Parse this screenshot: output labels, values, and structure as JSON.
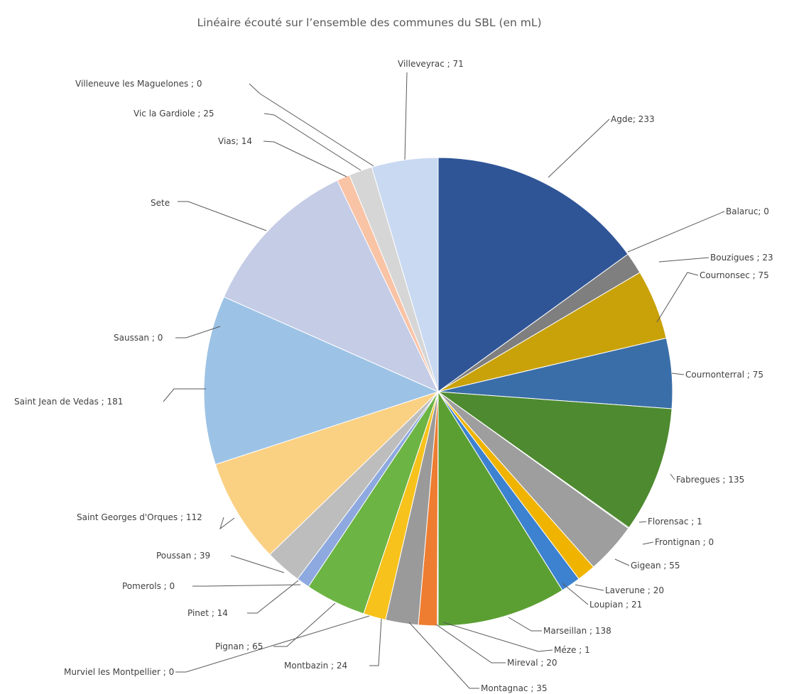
{
  "chart_data": {
    "type": "pie",
    "title": "Linéaire écouté sur l’ensemble des communes du SBL (en mL)",
    "start": "12-o'clock",
    "direction": "clockwise",
    "slices": [
      {
        "label": "Agde; 233",
        "value": 233,
        "color": "#2F5597"
      },
      {
        "label": "Balaruc; 0",
        "value": 0,
        "color": "#6E6E6E"
      },
      {
        "label": "Bouzigues ; 23",
        "value": 23,
        "color": "#7F7F7F"
      },
      {
        "label": "Cournonsec ; 75",
        "value": 75,
        "color": "#C9A20A"
      },
      {
        "label": "Cournonterral ; 75",
        "value": 75,
        "color": "#3A6EA8"
      },
      {
        "label": "Fabregues ; 135",
        "value": 135,
        "color": "#4E8A30"
      },
      {
        "label": "Florensac ; 1",
        "value": 1,
        "color": "#4E8A30"
      },
      {
        "label": "Frontignan ; 0",
        "value": 0,
        "color": "#9E9E9E"
      },
      {
        "label": "Gigean ; 55",
        "value": 55,
        "color": "#9E9E9E"
      },
      {
        "label": "Laverune ; 20",
        "value": 20,
        "color": "#F0B400"
      },
      {
        "label": "Loupian ; 21",
        "value": 21,
        "color": "#3C82D0"
      },
      {
        "label": "Marseillan ; 138",
        "value": 138,
        "color": "#5B9F32"
      },
      {
        "label": "Méze ; 1",
        "value": 1,
        "color": "#5B9F32"
      },
      {
        "label": "Mireval ; 20",
        "value": 20,
        "color": "#EE7D31"
      },
      {
        "label": "Montagnac ; 35",
        "value": 35,
        "color": "#9A9A9A"
      },
      {
        "label": "Montbazin ; 24",
        "value": 24,
        "color": "#F7C21B"
      },
      {
        "label": "Murviel les Montpellier ; 0",
        "value": 0,
        "color": "#5BA8DD"
      },
      {
        "label": "Pignan ; 65",
        "value": 65,
        "color": "#6CB443"
      },
      {
        "label": "Pinet ; 14",
        "value": 14,
        "color": "#8DA9E0"
      },
      {
        "label": "Pomerols ; 0",
        "value": 0,
        "color": "#B5B5B5"
      },
      {
        "label": "Poussan ; 39",
        "value": 39,
        "color": "#BDBDBD"
      },
      {
        "label": "Saint Georges d'Orques ; 112",
        "value": 112,
        "color": "#FAD083"
      },
      {
        "label": "Saint Jean de Vedas ; 181",
        "value": 181,
        "color": "#9CC3E6"
      },
      {
        "label": "Saussan ; 0",
        "value": 0,
        "color": "#A9C7EC"
      },
      {
        "label": "Sete",
        "value": 175,
        "color": "#C5CCE6"
      },
      {
        "label": "Vias; 14",
        "value": 14,
        "color": "#F9C3A5"
      },
      {
        "label": "Vic la Gardiole ; 25",
        "value": 25,
        "color": "#D6D6D6"
      },
      {
        "label": "Villeneuve les Maguelones ; 0",
        "value": 0,
        "color": "#D0D8EC"
      },
      {
        "label": "Villeveyrac ; 71",
        "value": 71,
        "color": "#C9D9F1"
      }
    ]
  }
}
